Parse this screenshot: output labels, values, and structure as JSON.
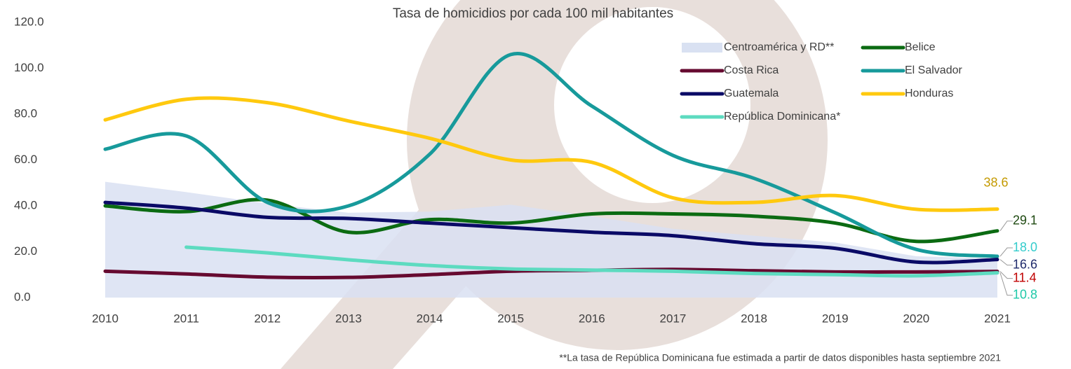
{
  "chart_data": {
    "type": "line",
    "title": "Tasa de homicidios por cada 100 mil habitantes",
    "footnote": "**La tasa de República Dominicana fue estimada a partir de datos disponibles hasta septiembre 2021",
    "categories": [
      "2010",
      "2011",
      "2012",
      "2013",
      "2014",
      "2015",
      "2016",
      "2017",
      "2018",
      "2019",
      "2020",
      "2021"
    ],
    "ylim": [
      0,
      120
    ],
    "yticks": [
      {
        "value": 0,
        "label": "0.0"
      },
      {
        "value": 20,
        "label": "20.0"
      },
      {
        "value": 40,
        "label": "40.0"
      },
      {
        "value": 60,
        "label": "60.0"
      },
      {
        "value": 80,
        "label": "80.0"
      },
      {
        "value": 100,
        "label": "100.0"
      },
      {
        "value": 120,
        "label": "120.0"
      }
    ],
    "grid": false,
    "legend": "top-right",
    "series": [
      {
        "name": "Centroamérica y RD**",
        "kind": "area",
        "color": "#d9e1f2",
        "values": [
          50.5,
          46,
          41,
          37,
          37.5,
          40.5,
          35.5,
          30,
          27,
          24,
          18,
          17
        ]
      },
      {
        "name": "Belice",
        "color": "#0b6b12",
        "label_color": "#1f4a12",
        "values": [
          40,
          37.5,
          42.5,
          28.5,
          34,
          32.5,
          36.5,
          36.5,
          35.5,
          32.5,
          24.5,
          29.1
        ],
        "value_labels": [
          null,
          null,
          null,
          null,
          null,
          null,
          null,
          null,
          null,
          null,
          null,
          "29.1"
        ]
      },
      {
        "name": "Costa Rica",
        "color": "#660a30",
        "label_color": "#c00000",
        "values": [
          11.5,
          10.3,
          8.9,
          8.8,
          10,
          11.5,
          11.9,
          12.3,
          11.7,
          11.2,
          11.2,
          11.4
        ],
        "value_labels": [
          null,
          null,
          null,
          null,
          null,
          null,
          null,
          null,
          null,
          null,
          null,
          "11.4"
        ]
      },
      {
        "name": "El Salvador",
        "color": "#179a9b",
        "label_color": "#33cccc",
        "values": [
          64.7,
          70.5,
          41.5,
          40,
          62.5,
          106,
          83.5,
          62,
          52,
          37,
          21,
          18
        ],
        "value_labels": [
          null,
          null,
          null,
          null,
          null,
          null,
          null,
          null,
          null,
          null,
          null,
          "18.0"
        ]
      },
      {
        "name": "Guatemala",
        "color": "#0a0a66",
        "label_color": "#1f2a6b",
        "values": [
          41.5,
          39,
          35,
          34.5,
          32.5,
          30.5,
          28.5,
          27,
          23.5,
          21.5,
          15.5,
          16.6
        ],
        "value_labels": [
          null,
          null,
          null,
          null,
          null,
          null,
          null,
          null,
          null,
          null,
          null,
          "16.6"
        ]
      },
      {
        "name": "Honduras",
        "color": "#ffc90e",
        "label_color": "#c49a00",
        "values": [
          77.5,
          86.5,
          85,
          77,
          69.5,
          60,
          59,
          43.5,
          41.5,
          44.5,
          38.5,
          38.6
        ],
        "value_labels": [
          null,
          null,
          null,
          null,
          null,
          null,
          null,
          null,
          null,
          null,
          null,
          "38.6"
        ]
      },
      {
        "name": "República Dominicana*",
        "color": "#5ddbc0",
        "label_color": "#1ec8a8",
        "values": [
          null,
          22,
          19.5,
          16.5,
          14,
          12.5,
          12,
          11.5,
          10.5,
          10,
          9.5,
          10.8
        ],
        "value_labels": [
          null,
          null,
          null,
          null,
          null,
          null,
          null,
          null,
          null,
          null,
          null,
          "10.8"
        ]
      }
    ]
  }
}
